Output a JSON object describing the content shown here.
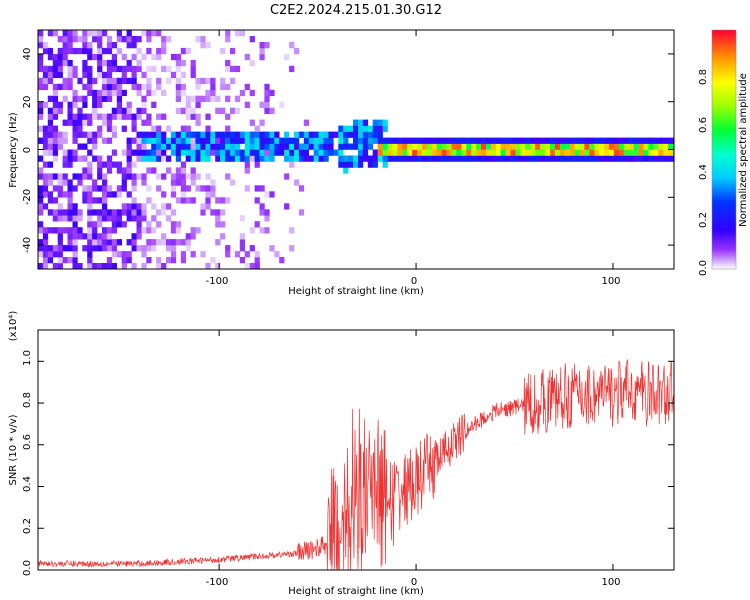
{
  "title": "C2E2.2024.215.01.30.G12",
  "chart_data": [
    {
      "type": "heatmap",
      "xlabel": "Height of straight line (km)",
      "ylabel": "Frequency (Hz)",
      "xlim": [
        -192,
        131
      ],
      "ylim": [
        -50,
        50
      ],
      "xticks": [
        -100,
        0,
        100
      ],
      "yticks": [
        -40,
        -20,
        0,
        20,
        40
      ],
      "colorbar": {
        "label": "Normalized spectral amplitude",
        "range": [
          0,
          1
        ],
        "ticks": [
          "0.0",
          "0.2",
          "0.4",
          "0.6",
          "0.8"
        ]
      },
      "signal": {
        "carrier_frequency_hz": 0,
        "carrier_visible_from_km": -20,
        "noise_only_below_km": -140,
        "noise_extends_to_km": -55
      }
    },
    {
      "type": "line",
      "xlabel": "Height of straight line (km)",
      "ylabel": "SNR (10 * v/v)",
      "multiplier_label": "(x10⁴)",
      "xlim": [
        -192,
        131
      ],
      "ylim": [
        0,
        1.15
      ],
      "xticks": [
        -100,
        0,
        100
      ],
      "yticks": [
        "0.0",
        "0.2",
        "0.4",
        "0.6",
        "0.8",
        "1.0"
      ],
      "series_color": "#ee3333",
      "trend": {
        "x": [
          -192,
          -140,
          -100,
          -60,
          -45,
          -38,
          -30,
          -20,
          -10,
          0,
          10,
          20,
          30,
          40,
          50,
          60,
          70,
          80,
          90,
          100,
          110,
          120,
          131
        ],
        "y": [
          0.03,
          0.03,
          0.05,
          0.08,
          0.12,
          0.22,
          0.3,
          0.33,
          0.36,
          0.42,
          0.52,
          0.62,
          0.7,
          0.76,
          0.78,
          0.8,
          0.82,
          0.84,
          0.84,
          0.84,
          0.86,
          0.84,
          0.85
        ]
      }
    }
  ]
}
